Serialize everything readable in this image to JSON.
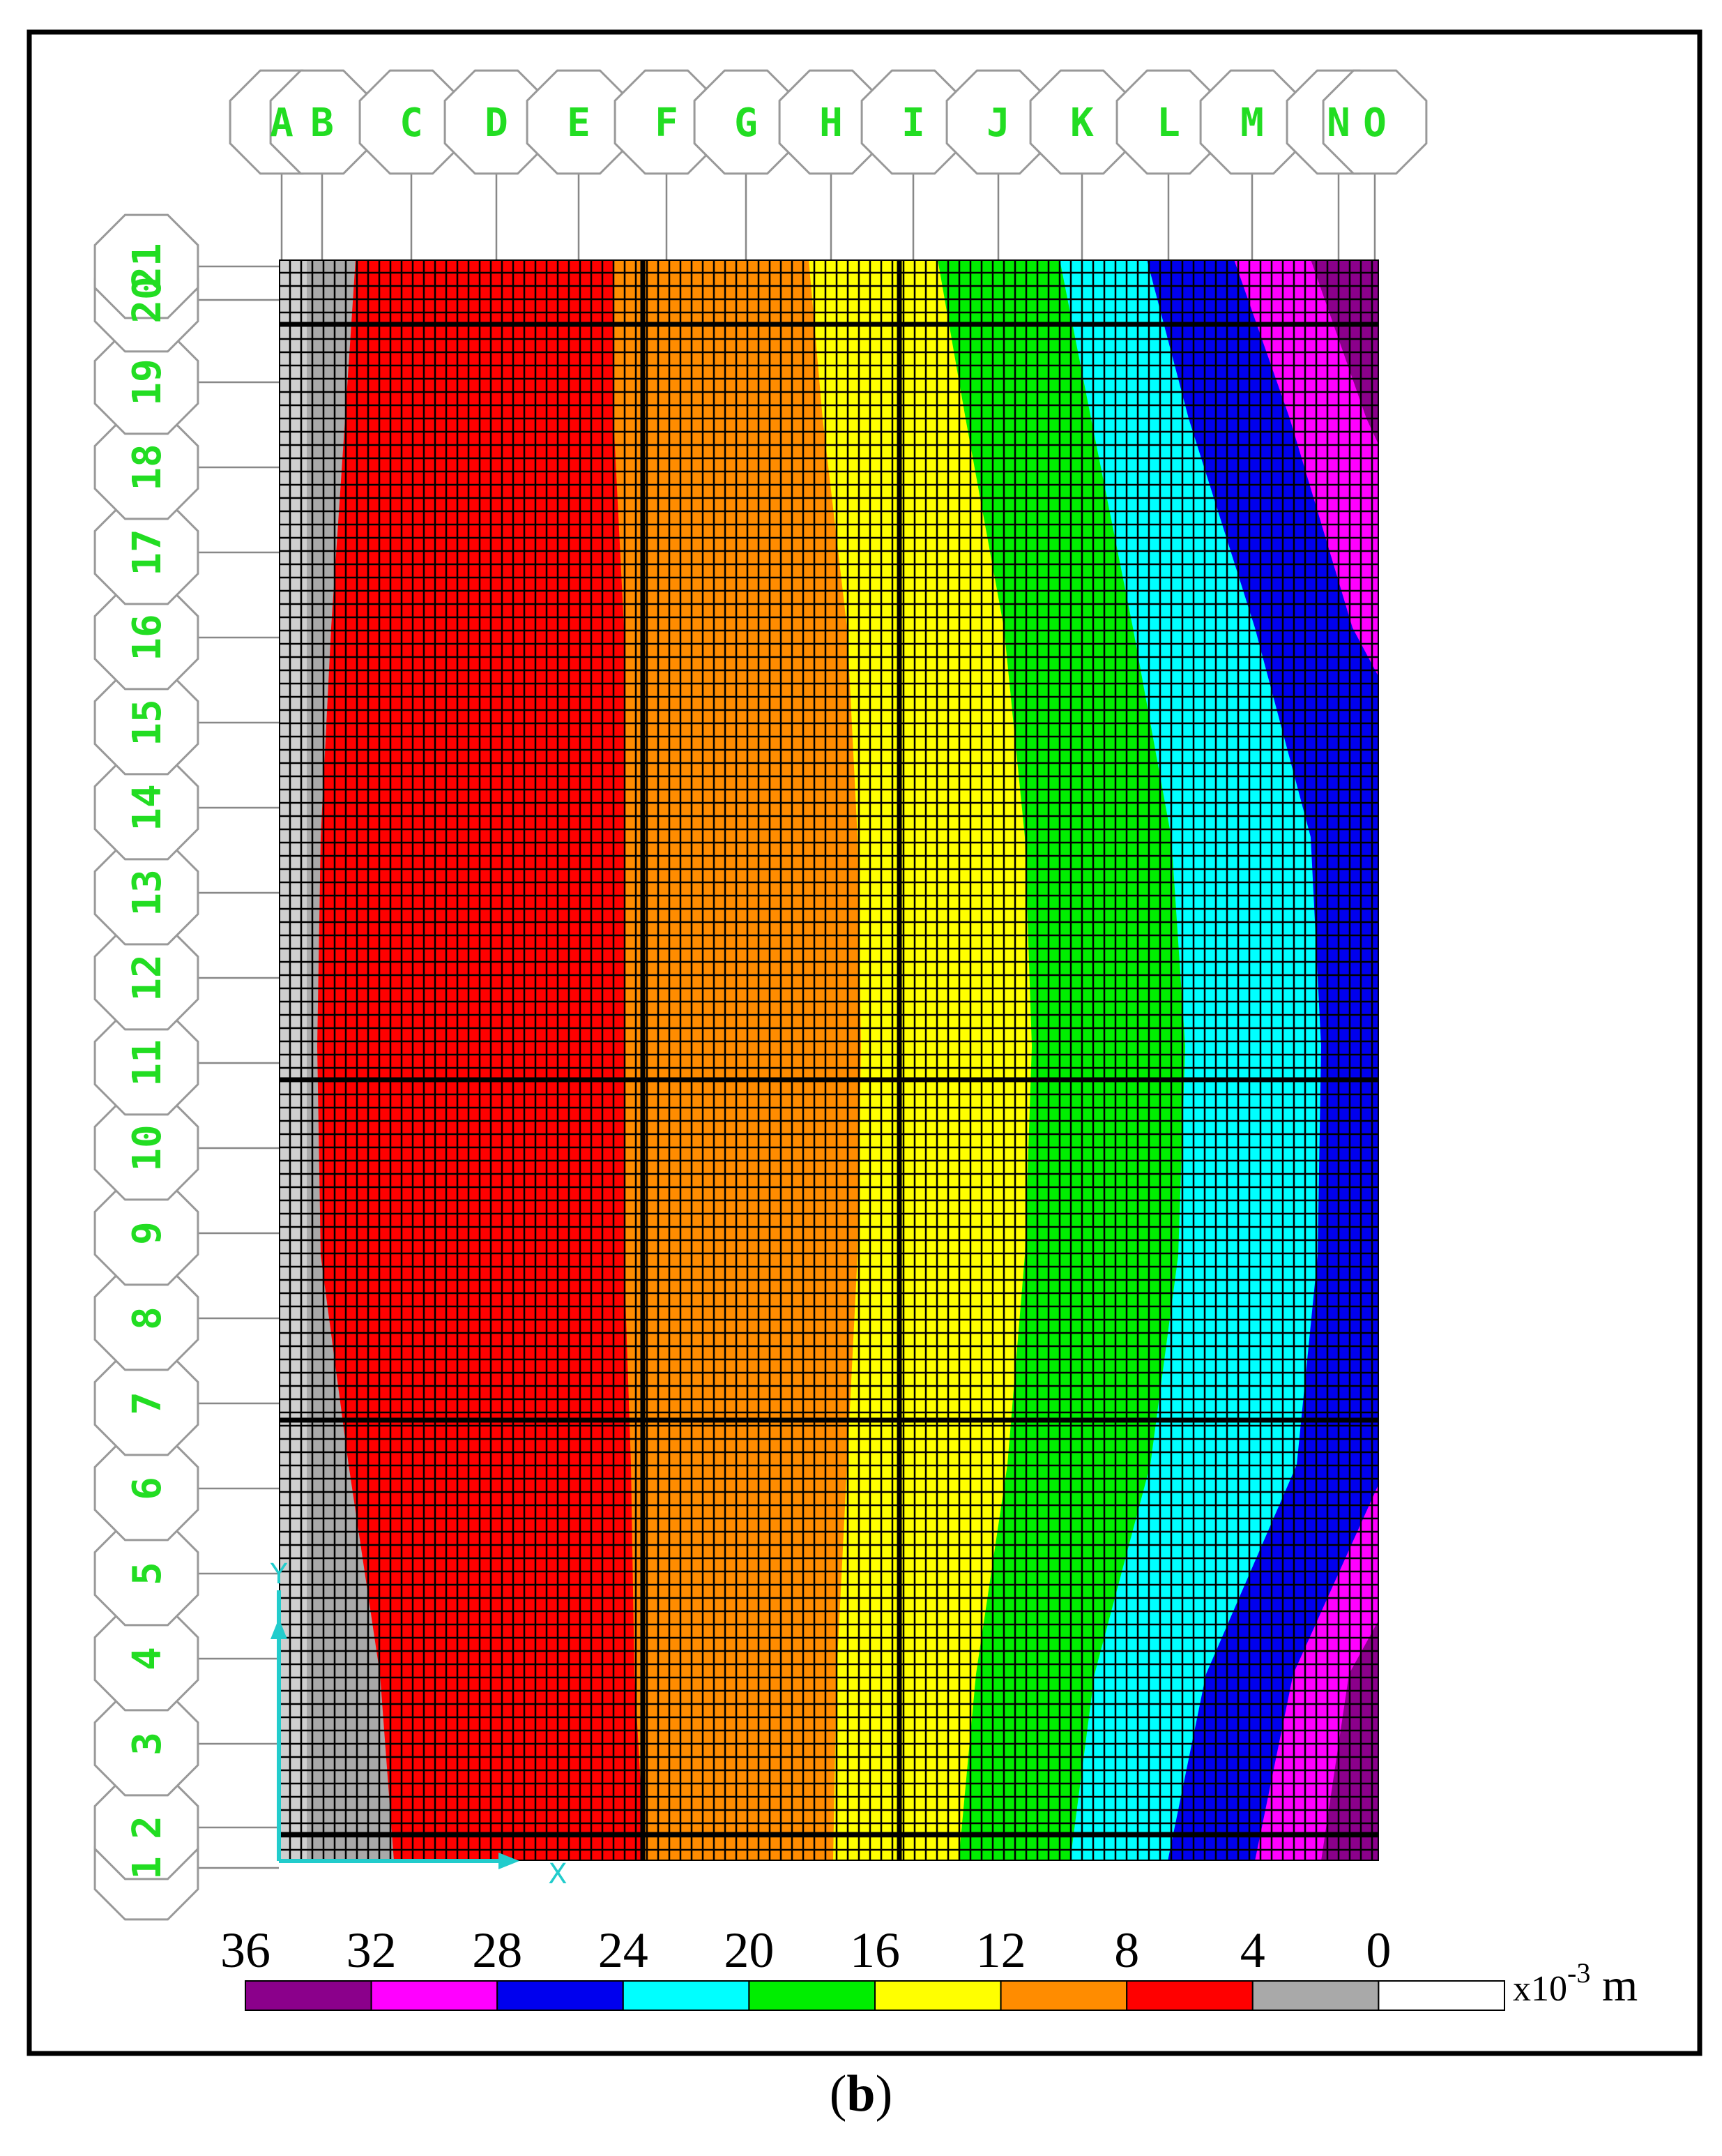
{
  "diagram": {
    "column_grid_labels": [
      "A",
      "B",
      "C",
      "D",
      "E",
      "F",
      "G",
      "H",
      "I",
      "J",
      "K",
      "L",
      "M",
      "N",
      "O"
    ],
    "row_grid_labels": [
      "1",
      "2",
      "3",
      "4",
      "5",
      "6",
      "7",
      "8",
      "9",
      "10",
      "11",
      "12",
      "13",
      "14",
      "15",
      "16",
      "17",
      "18",
      "19",
      "20",
      "21"
    ],
    "grid_label_color": "#22dd22",
    "axis_labels": {
      "x": "X",
      "y": "Y"
    },
    "axis_color": "#22cccc",
    "legend": {
      "tick_labels": [
        "36",
        "32",
        "28",
        "24",
        "20",
        "16",
        "12",
        "8",
        "4",
        "0"
      ],
      "unit_prefix": "x10",
      "unit_exponent": "-3",
      "unit_suffix": " m",
      "colors": [
        "#8b008b",
        "#ff00ff",
        "#0000ee",
        "#00ffff",
        "#00ee00",
        "#ffff00",
        "#ff8c00",
        "#ff0000",
        "#a9a9a9",
        "#ffffff"
      ]
    },
    "caption": {
      "open": "(",
      "letter": "b",
      "close": ")"
    }
  }
}
